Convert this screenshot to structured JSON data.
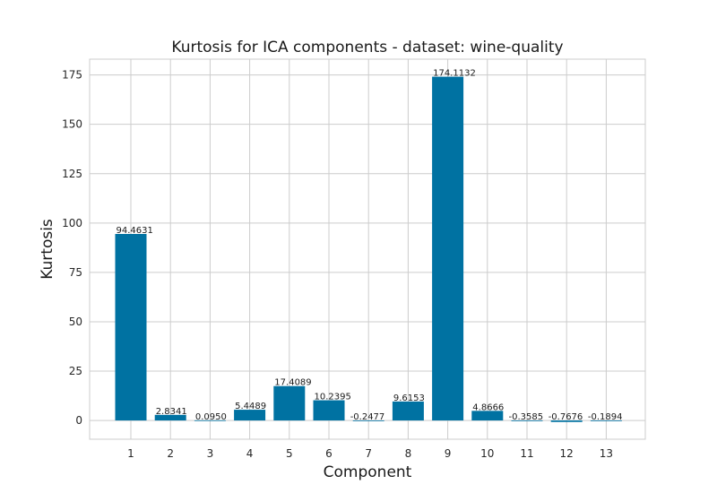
{
  "chart_data": {
    "type": "bar",
    "title": "Kurtosis for ICA components - dataset: wine-quality",
    "xlabel": "Component",
    "ylabel": "Kurtosis",
    "categories": [
      "1",
      "2",
      "3",
      "4",
      "5",
      "6",
      "7",
      "8",
      "9",
      "10",
      "11",
      "12",
      "13"
    ],
    "values": [
      94.4631,
      2.8341,
      0.095,
      5.4489,
      17.4089,
      10.2395,
      -0.2477,
      9.6153,
      174.1132,
      4.8666,
      -0.3585,
      -0.7676,
      -0.1894
    ],
    "value_labels": [
      "94.4631",
      "2.8341",
      "0.0950",
      "5.4489",
      "17.4089",
      "10.2395",
      "-0.2477",
      "9.6153",
      "174.1132",
      "4.8666",
      "-0.3585",
      "-0.7676",
      "-0.1894"
    ],
    "ylim": [
      -9.5,
      183
    ],
    "yticks": [
      0,
      25,
      50,
      75,
      100,
      125,
      150,
      175
    ],
    "grid": true,
    "bar_color": "#0072a2"
  }
}
